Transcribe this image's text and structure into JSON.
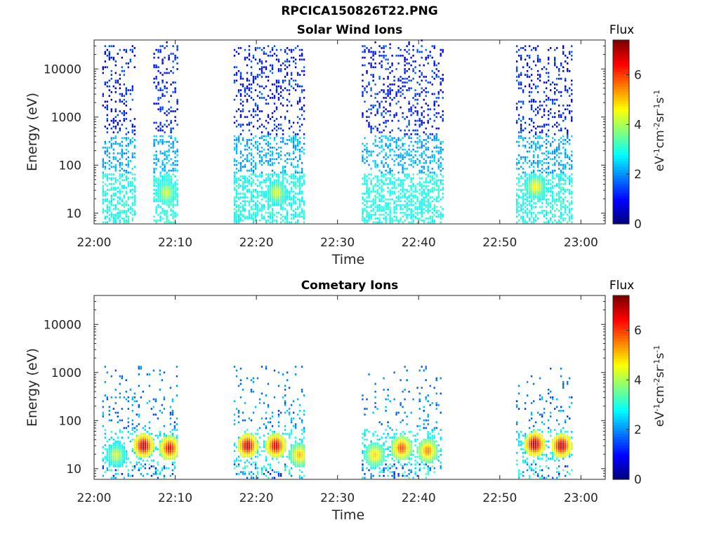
{
  "figure": {
    "title": "RPCICA150826T22.PNG"
  },
  "colormap": "jet",
  "chart_data": [
    {
      "type": "heatmap",
      "title": "Solar Wind Ions",
      "xlabel": "Time",
      "ylabel": "Energy (eV)",
      "yscale": "log",
      "ylim": [
        6,
        40000
      ],
      "xlim": [
        "22:00",
        "23:03"
      ],
      "xticks": [
        "22:00",
        "22:10",
        "22:20",
        "22:30",
        "22:40",
        "22:50",
        "23:00"
      ],
      "yticks": [
        10,
        100,
        1000,
        10000
      ],
      "ytick_labels": [
        "10",
        "100",
        "1000",
        "10000"
      ],
      "colorbar": {
        "label": "Flux",
        "unit": "eV-1cm-2sr-1s-1",
        "range": [
          0,
          7.4
        ],
        "ticks": [
          "0",
          "2",
          "4",
          "6"
        ]
      },
      "active_intervals_min": [
        [
          1,
          5
        ],
        [
          7.3,
          10.3
        ],
        [
          17.2,
          26
        ],
        [
          33,
          43
        ],
        [
          52,
          59
        ]
      ],
      "flux_peaks": [
        {
          "time_min": 8.8,
          "energy_ev": 25,
          "flux": 4.3
        },
        {
          "time_min": 22.4,
          "energy_ev": 25,
          "flux": 4.4
        },
        {
          "time_min": 54.3,
          "energy_ev": 33,
          "flux": 4.7
        }
      ]
    },
    {
      "type": "heatmap",
      "title": "Cometary Ions",
      "xlabel": "Time",
      "ylabel": "Energy (eV)",
      "yscale": "log",
      "ylim": [
        6,
        40000
      ],
      "xlim": [
        "22:00",
        "23:03"
      ],
      "xticks": [
        "22:00",
        "22:10",
        "22:20",
        "22:30",
        "22:40",
        "22:50",
        "23:00"
      ],
      "yticks": [
        10,
        100,
        1000,
        10000
      ],
      "ytick_labels": [
        "10",
        "100",
        "1000",
        "10000"
      ],
      "colorbar": {
        "label": "Flux",
        "unit": "eV-1cm-2sr-1s-1",
        "range": [
          0,
          7.4
        ],
        "ticks": [
          "0",
          "2",
          "4",
          "6"
        ]
      },
      "active_intervals_min": [
        [
          1,
          10.3
        ],
        [
          17.2,
          26
        ],
        [
          33,
          42.8
        ],
        [
          52,
          59
        ]
      ],
      "flux_peaks": [
        {
          "time_min": 2.6,
          "energy_ev": 18,
          "flux": 4.3
        },
        {
          "time_min": 6.0,
          "energy_ev": 28,
          "flux": 6.9
        },
        {
          "time_min": 9.2,
          "energy_ev": 25,
          "flux": 6.5
        },
        {
          "time_min": 18.8,
          "energy_ev": 28,
          "flux": 6.8
        },
        {
          "time_min": 22.3,
          "energy_ev": 28,
          "flux": 6.7
        },
        {
          "time_min": 25.2,
          "energy_ev": 18,
          "flux": 5.2
        },
        {
          "time_min": 34.5,
          "energy_ev": 18,
          "flux": 5.0
        },
        {
          "time_min": 37.8,
          "energy_ev": 25,
          "flux": 6.0
        },
        {
          "time_min": 41.0,
          "energy_ev": 22,
          "flux": 5.6
        },
        {
          "time_min": 54.2,
          "energy_ev": 30,
          "flux": 7.0
        },
        {
          "time_min": 57.5,
          "energy_ev": 28,
          "flux": 6.9
        }
      ]
    }
  ]
}
